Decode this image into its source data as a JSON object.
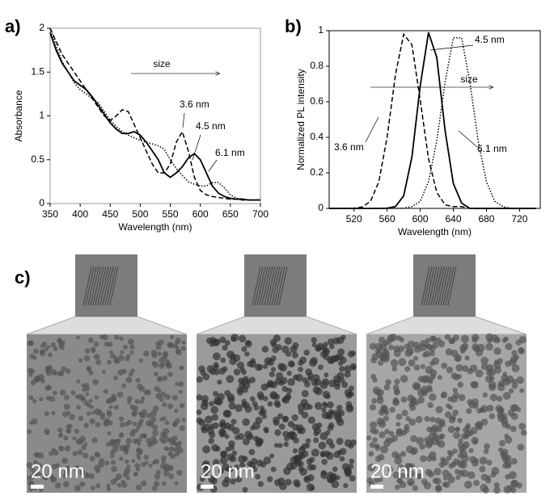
{
  "chart_data": [
    {
      "type": "line",
      "label": "a)",
      "x_label": "Wavelength (nm)",
      "y_label": "Absorbance",
      "annotation": "size",
      "x": [
        350,
        360,
        370,
        380,
        390,
        400,
        410,
        420,
        430,
        440,
        450,
        460,
        470,
        480,
        490,
        500,
        510,
        520,
        530,
        540,
        550,
        560,
        570,
        580,
        590,
        600,
        610,
        620,
        630,
        640,
        650,
        660,
        670,
        680,
        690,
        700
      ],
      "series": [
        {
          "name": "3.6 nm",
          "color": "#000000",
          "dash": "dashed",
          "values": [
            2.0,
            1.85,
            1.7,
            1.6,
            1.5,
            1.4,
            1.3,
            1.2,
            1.1,
            1.0,
            0.95,
            1.0,
            1.07,
            1.05,
            0.9,
            0.75,
            0.6,
            0.45,
            0.35,
            0.35,
            0.45,
            0.7,
            0.82,
            0.6,
            0.3,
            0.15,
            0.1,
            0.08,
            0.07,
            0.06,
            0.05,
            0.05,
            0.04,
            0.04,
            0.04,
            0.04
          ]
        },
        {
          "name": "4.5 nm",
          "color": "#000000",
          "dash": "solid",
          "values": [
            1.95,
            1.75,
            1.6,
            1.5,
            1.4,
            1.35,
            1.3,
            1.22,
            1.12,
            1.02,
            0.92,
            0.85,
            0.8,
            0.8,
            0.82,
            0.78,
            0.7,
            0.6,
            0.5,
            0.35,
            0.3,
            0.35,
            0.42,
            0.52,
            0.57,
            0.5,
            0.35,
            0.2,
            0.12,
            0.08,
            0.06,
            0.05,
            0.05,
            0.04,
            0.04,
            0.04
          ]
        },
        {
          "name": "6.1 nm",
          "color": "#000000",
          "dash": "dotted",
          "values": [
            2.0,
            1.8,
            1.62,
            1.5,
            1.38,
            1.3,
            1.25,
            1.2,
            1.15,
            1.05,
            0.95,
            0.88,
            0.82,
            0.78,
            0.75,
            0.72,
            0.7,
            0.68,
            0.66,
            0.62,
            0.5,
            0.4,
            0.32,
            0.25,
            0.22,
            0.2,
            0.2,
            0.24,
            0.24,
            0.18,
            0.1,
            0.06,
            0.05,
            0.04,
            0.04,
            0.04
          ]
        }
      ],
      "xlim": [
        350,
        700
      ],
      "xticks": [
        350,
        400,
        450,
        500,
        550,
        600,
        650,
        700
      ],
      "ylim": [
        0,
        2
      ],
      "yticks": [
        0,
        0.5,
        1,
        1.5,
        2
      ],
      "grid": false
    },
    {
      "type": "line",
      "label": "b)",
      "x_label": "Wavelength (nm)",
      "y_label": "Normalized PL intensity",
      "annotation": "size",
      "x": [
        490,
        500,
        510,
        520,
        530,
        540,
        550,
        560,
        570,
        580,
        590,
        600,
        610,
        620,
        630,
        640,
        650,
        660,
        670,
        680,
        690,
        700,
        710,
        720,
        730,
        740
      ],
      "series": [
        {
          "name": "3.6 nm",
          "color": "#000000",
          "dash": "dashed",
          "values": [
            0,
            0,
            0,
            0.001,
            0.008,
            0.04,
            0.15,
            0.4,
            0.75,
            0.98,
            0.92,
            0.61,
            0.28,
            0.09,
            0.02,
            0.01,
            0.01,
            0,
            0,
            0,
            0,
            0,
            0,
            0,
            0,
            0
          ]
        },
        {
          "name": "4.5 nm",
          "color": "#000000",
          "dash": "solid",
          "values": [
            0,
            0,
            0,
            0,
            0,
            0,
            0,
            0.001,
            0.01,
            0.07,
            0.29,
            0.69,
            0.99,
            0.85,
            0.44,
            0.14,
            0.03,
            0,
            0,
            0,
            0,
            0,
            0,
            0,
            0,
            0
          ]
        },
        {
          "name": "6.1 nm",
          "color": "#000000",
          "dash": "dotted",
          "values": [
            0,
            0,
            0,
            0,
            0,
            0,
            0,
            0,
            0,
            0.0015,
            0.01,
            0.04,
            0.15,
            0.38,
            0.71,
            0.96,
            0.96,
            0.71,
            0.38,
            0.15,
            0.04,
            0.01,
            0,
            0,
            0,
            0
          ]
        }
      ],
      "xlim": [
        490,
        745
      ],
      "xticks": [
        520,
        560,
        600,
        640,
        680,
        720
      ],
      "ylim": [
        0,
        1
      ],
      "yticks": [
        0,
        0.2,
        0.4,
        0.6,
        0.8,
        1
      ],
      "grid": false
    }
  ],
  "panel_c": {
    "label": "c)",
    "images": [
      {
        "scale_label": "20 nm"
      },
      {
        "scale_label": "20 nm"
      },
      {
        "scale_label": "20 nm"
      }
    ]
  }
}
